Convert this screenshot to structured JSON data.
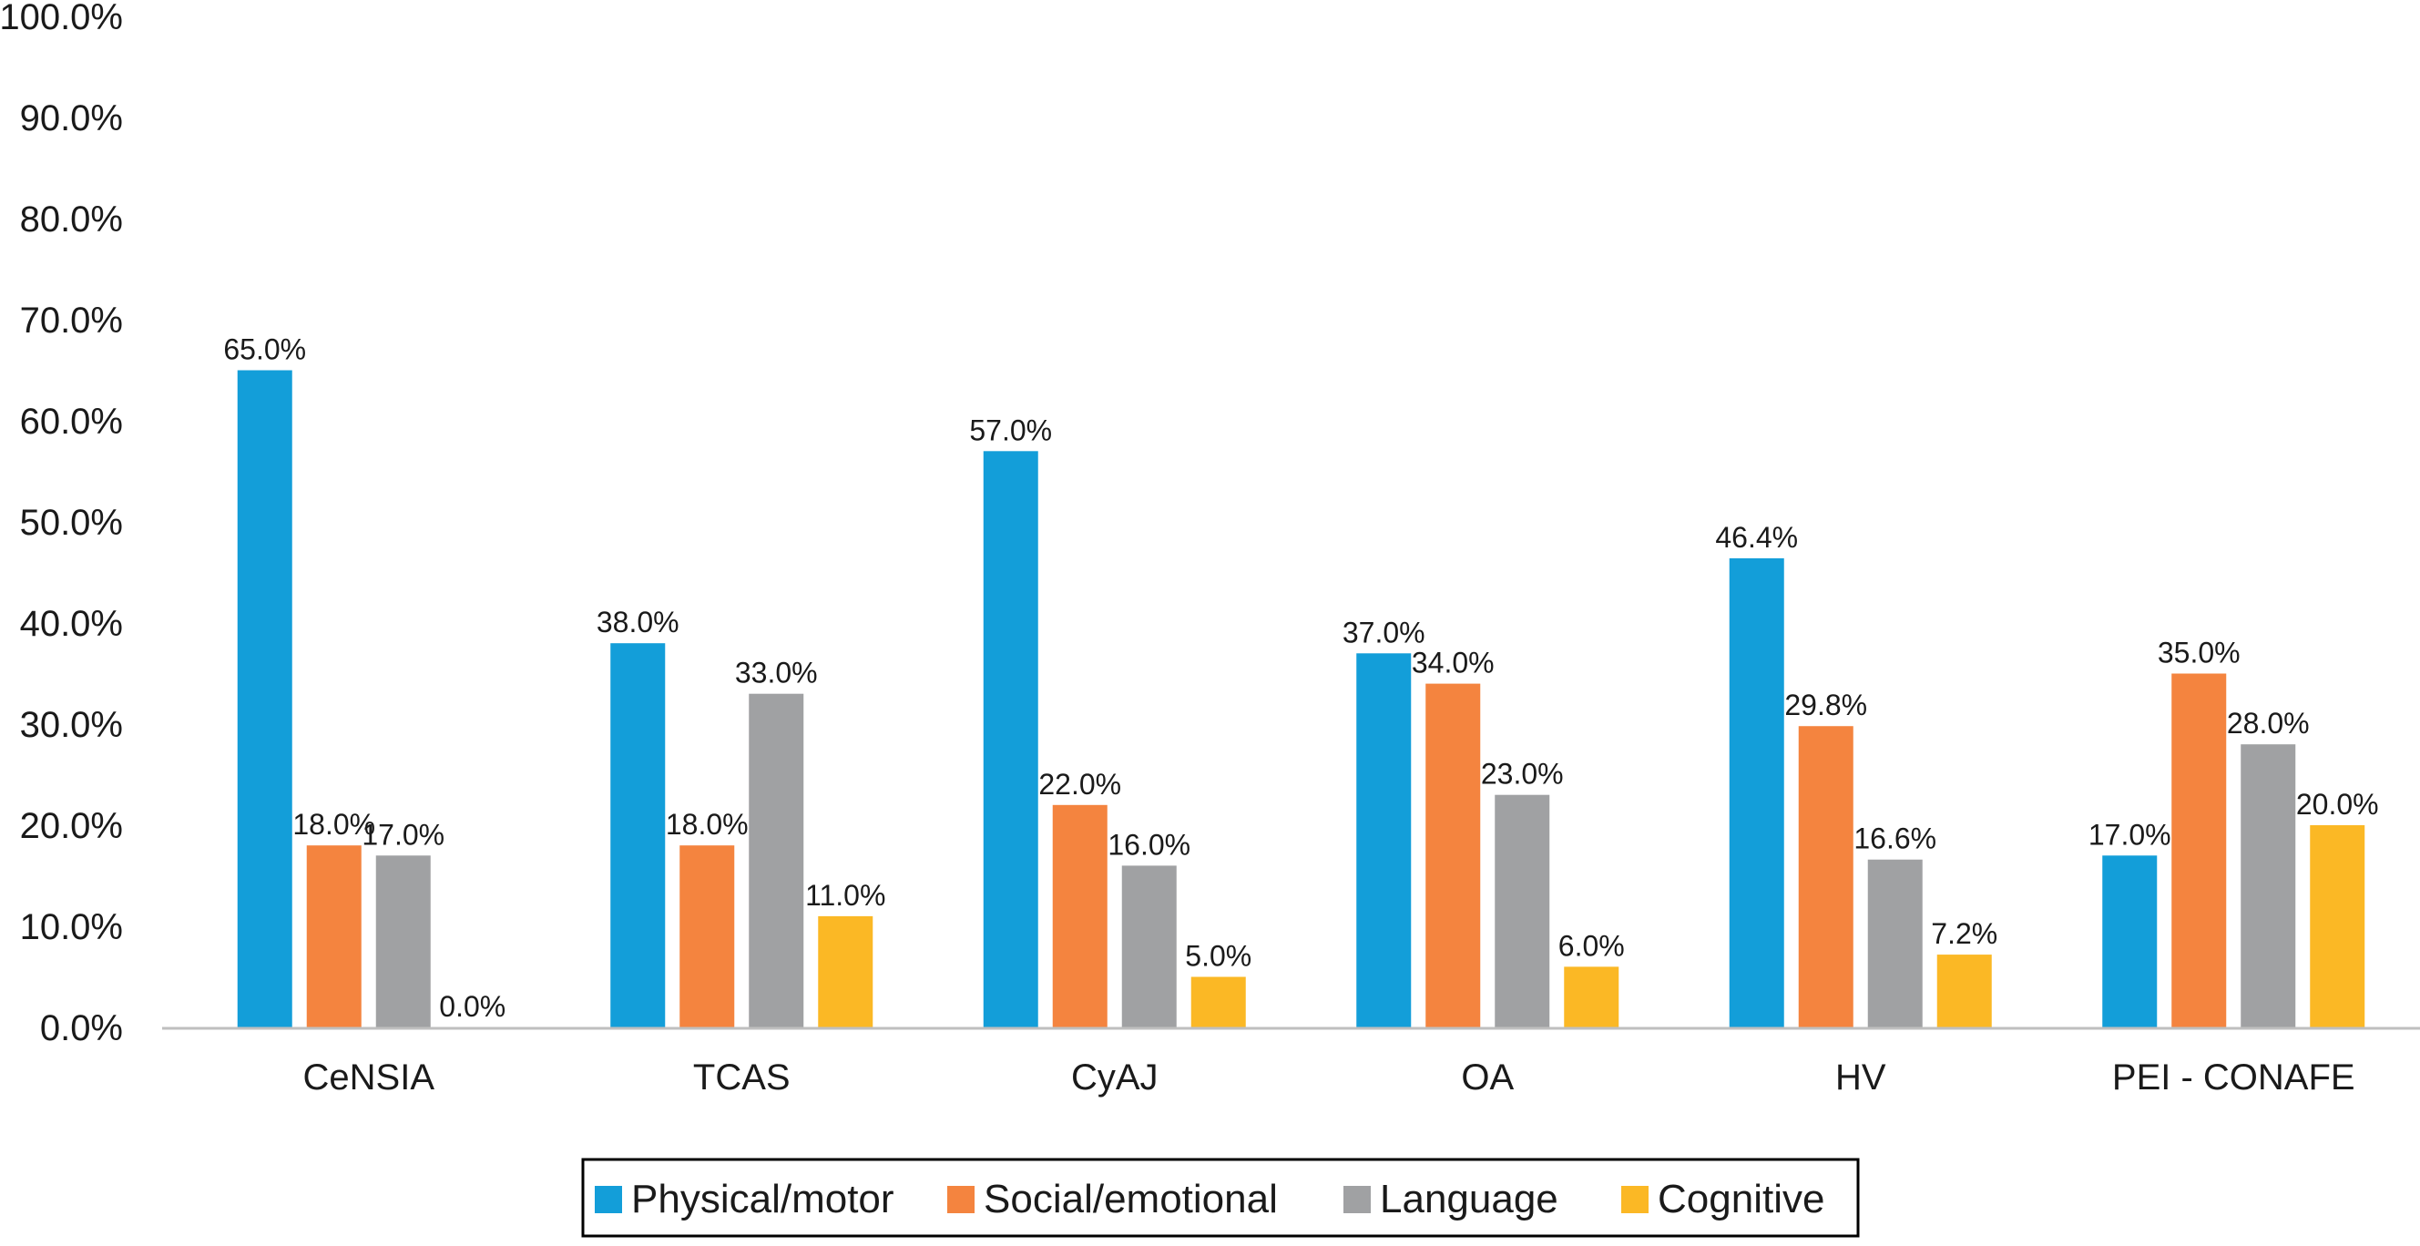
{
  "chart_data": {
    "type": "bar",
    "categories": [
      "CeNSIA",
      "TCAS",
      "CyAJ",
      "OA",
      "HV",
      "PEI - CONAFE"
    ],
    "series": [
      {
        "name": "Physical/motor",
        "color": "#139ED9",
        "values": [
          65.0,
          38.0,
          57.0,
          37.0,
          46.4,
          17.0
        ],
        "labels": [
          "65.0%",
          "38.0%",
          "57.0%",
          "37.0%",
          "46.4%",
          "17.0%"
        ]
      },
      {
        "name": "Social/emotional",
        "color": "#F4843F",
        "values": [
          18.0,
          18.0,
          22.0,
          34.0,
          29.8,
          35.0
        ],
        "labels": [
          "18.0%",
          "18.0%",
          "22.0%",
          "34.0%",
          "29.8%",
          "35.0%"
        ]
      },
      {
        "name": "Language",
        "color": "#A0A1A3",
        "values": [
          17.0,
          33.0,
          16.0,
          23.0,
          16.6,
          28.0
        ],
        "labels": [
          "17.0%",
          "33.0%",
          "16.0%",
          "23.0%",
          "16.6%",
          "28.0%"
        ]
      },
      {
        "name": "Cognitive",
        "color": "#FBB825",
        "values": [
          0.0,
          11.0,
          5.0,
          6.0,
          7.2,
          20.0
        ],
        "labels": [
          "0.0%",
          "11.0%",
          "5.0%",
          "6.0%",
          "7.2%",
          "20.0%"
        ]
      }
    ],
    "ylim": [
      0,
      100
    ],
    "yticks": [
      "0.0%",
      "10.0%",
      "20.0%",
      "30.0%",
      "40.0%",
      "50.0%",
      "60.0%",
      "70.0%",
      "80.0%",
      "90.0%",
      "100.0%"
    ],
    "ytick_values": [
      0,
      10,
      20,
      30,
      40,
      50,
      60,
      70,
      80,
      90,
      100
    ],
    "title": "",
    "xlabel": "",
    "ylabel": "",
    "grid": false,
    "legend_position": "bottom",
    "axis_color": "#BFBFBF"
  }
}
